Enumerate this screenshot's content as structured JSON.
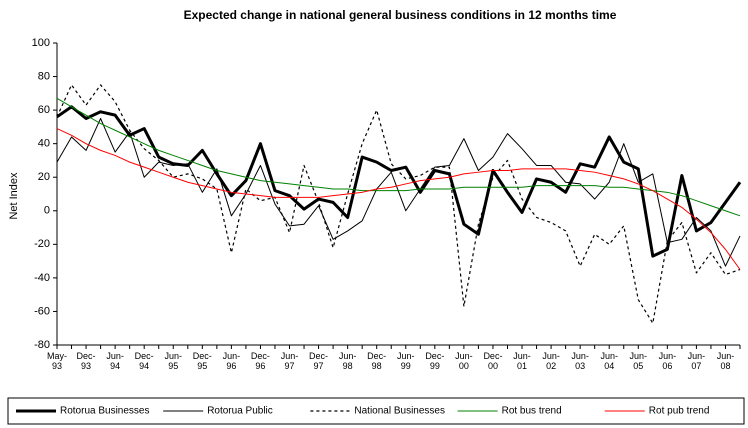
{
  "chart_data": {
    "type": "line",
    "title": "Expected change in national general business conditions in 12 months time",
    "y_label": "Net Index",
    "categories": [
      "May-93",
      null,
      "Dec-93",
      null,
      "Jun-94",
      null,
      "Dec-94",
      null,
      "Jun-95",
      null,
      "Dec-95",
      null,
      "Jun-96",
      null,
      "Dec-96",
      null,
      "Jun-97",
      null,
      "Dec-97",
      null,
      "Jun-98",
      null,
      "Dec-98",
      null,
      "Jun-99",
      null,
      "Dec-99",
      null,
      "Jun-00",
      null,
      "Dec-00",
      null,
      "Jun-01",
      null,
      "Jun-02",
      null,
      "Jun-03",
      null,
      "Jun-04",
      null,
      "Jun-05",
      null,
      "Jun-06",
      null,
      "Jun-07",
      null,
      "Jun-08",
      null
    ],
    "series": [
      {
        "name": "Rotorua Businesses",
        "color": "#000000",
        "width": 3,
        "dash": "none",
        "values": [
          56,
          62,
          55,
          59,
          57,
          45,
          49,
          32,
          28,
          27,
          36,
          22,
          9,
          18,
          40,
          12,
          9,
          1,
          7,
          5,
          -4,
          32,
          29,
          24,
          26,
          11,
          24,
          22,
          -8,
          -14,
          24,
          11,
          -1,
          19,
          17,
          11,
          28,
          26,
          44,
          29,
          25,
          -27,
          -23,
          21,
          -12,
          -7,
          5,
          17
        ]
      },
      {
        "name": "Rotorua Public",
        "color": "#000000",
        "width": 1,
        "dash": "none",
        "values": [
          29,
          44,
          36,
          55,
          35,
          47,
          20,
          29,
          27,
          28,
          11,
          25,
          -3,
          10,
          27,
          4,
          -9,
          -8,
          3,
          -17,
          -12,
          -6,
          13,
          23,
          0,
          13,
          26,
          27,
          43,
          24,
          32,
          46,
          37,
          27,
          27,
          17,
          16,
          7,
          17,
          40,
          17,
          22,
          -19,
          -17,
          -4,
          -12,
          -33,
          -15
        ]
      },
      {
        "name": "National Businesses",
        "color": "#000000",
        "width": 1.2,
        "dash": "3,3",
        "values": [
          56,
          75,
          63,
          75,
          65,
          48,
          37,
          30,
          20,
          22,
          19,
          13,
          -25,
          13,
          6,
          8,
          -13,
          27,
          5,
          -22,
          10,
          40,
          60,
          28,
          19,
          21,
          26,
          26,
          -57,
          -8,
          20,
          30,
          7,
          -4,
          -7,
          -12,
          -33,
          -14,
          -20,
          -9,
          -53,
          -67,
          -18,
          -7,
          -37,
          -25,
          -38,
          -35
        ]
      },
      {
        "name": "Rot bus trend",
        "color": "#008000",
        "width": 1,
        "dash": "none",
        "values": [
          67,
          62,
          57,
          52,
          48,
          44,
          40,
          36,
          33,
          30,
          27,
          24,
          22,
          20,
          18,
          17,
          16,
          15,
          14,
          13,
          13,
          12,
          12,
          12,
          12,
          13,
          13,
          13,
          14,
          14,
          14,
          14,
          14,
          15,
          15,
          15,
          15,
          15,
          14,
          14,
          13,
          12,
          11,
          9,
          6,
          3,
          0,
          -3
        ]
      },
      {
        "name": "Rot pub trend",
        "color": "#ff0000",
        "width": 1,
        "dash": "none",
        "values": [
          49,
          45,
          40,
          36,
          33,
          29,
          26,
          23,
          20,
          17,
          15,
          13,
          11,
          10,
          9,
          8,
          8,
          8,
          8,
          9,
          10,
          11,
          13,
          14,
          16,
          18,
          19,
          20,
          22,
          23,
          24,
          24,
          25,
          25,
          25,
          25,
          24,
          23,
          21,
          19,
          16,
          12,
          7,
          2,
          -5,
          -13,
          -23,
          -35
        ]
      }
    ],
    "ylim": [
      -80,
      100
    ],
    "yticks": [
      -80,
      -60,
      -40,
      -20,
      0,
      20,
      40,
      60,
      80,
      100
    ],
    "grid": false,
    "legend": "bottom"
  }
}
